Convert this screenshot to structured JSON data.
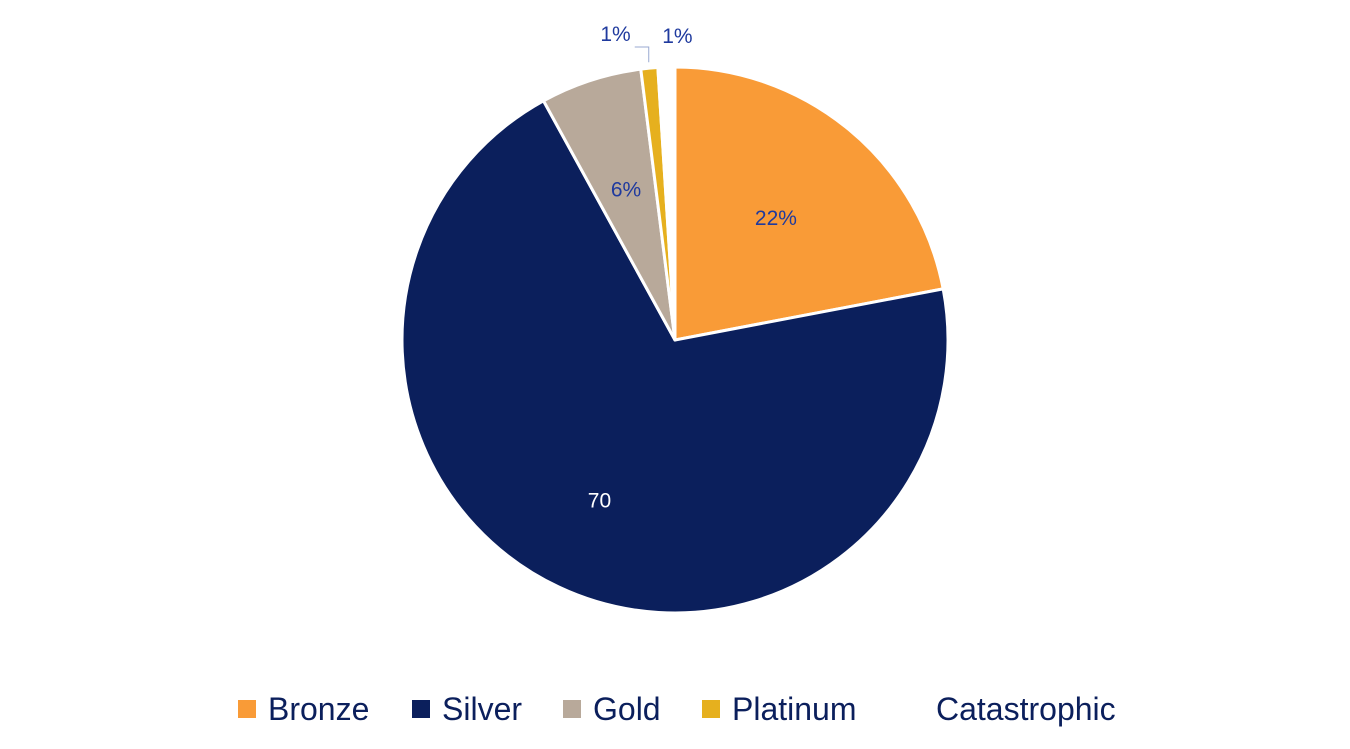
{
  "chart_data": {
    "type": "pie",
    "title": "",
    "categories": [
      "Bronze",
      "Silver",
      "Gold",
      "Platinum",
      "Catastrophic"
    ],
    "values": [
      22,
      70,
      6,
      1,
      1
    ],
    "data_labels": [
      "22%",
      "70",
      "6%",
      "1%",
      "1%"
    ],
    "colors": [
      "#f99b37",
      "#0b1f5c",
      "#b8a99a",
      "#e6b01e",
      "#ffffff"
    ],
    "legend_position": "bottom",
    "start_angle_deg": 0,
    "direction": "clockwise"
  },
  "legend": {
    "items": [
      {
        "label": "Bronze",
        "color": "#f99b37"
      },
      {
        "label": "Silver",
        "color": "#0b1f5c"
      },
      {
        "label": "Gold",
        "color": "#b8a99a"
      },
      {
        "label": "Platinum",
        "color": "#e6b01e"
      },
      {
        "label": "Catastrophic",
        "color": "#ffffff"
      }
    ]
  }
}
